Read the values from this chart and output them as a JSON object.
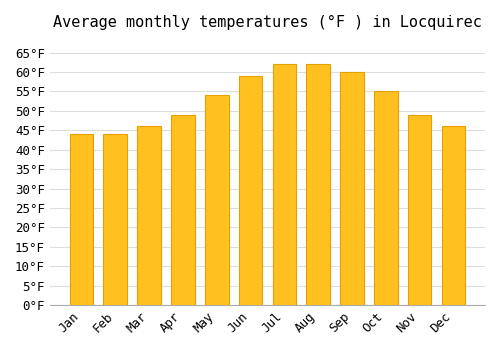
{
  "title": "Average monthly temperatures (°F ) in Locquirec",
  "months": [
    "Jan",
    "Feb",
    "Mar",
    "Apr",
    "May",
    "Jun",
    "Jul",
    "Aug",
    "Sep",
    "Oct",
    "Nov",
    "Dec"
  ],
  "values": [
    44,
    44,
    46,
    49,
    54,
    59,
    62,
    62,
    60,
    55,
    49,
    46
  ],
  "bar_color": "#FFC020",
  "bar_edge_color": "#E8A000",
  "background_color": "#FFFFFF",
  "grid_color": "#DDDDDD",
  "title_fontsize": 11,
  "tick_fontsize": 9,
  "ylim": [
    0,
    68
  ],
  "yticks": [
    0,
    5,
    10,
    15,
    20,
    25,
    30,
    35,
    40,
    45,
    50,
    55,
    60,
    65
  ]
}
